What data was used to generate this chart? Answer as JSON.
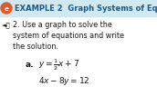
{
  "bg_color": "#ffffff",
  "header_bg": "#d0e8f0",
  "header_text": "EXAMPLE 2  Graph Systems of Equ",
  "header_color": "#1a5a8a",
  "body_line1": "2. Use a graph to solve the",
  "body_line2": "system of equations and write",
  "body_line3": "the solution.",
  "part_label": "a.",
  "title_font_size": 6.0,
  "body_font_size": 5.8,
  "eq_font_size": 6.5
}
